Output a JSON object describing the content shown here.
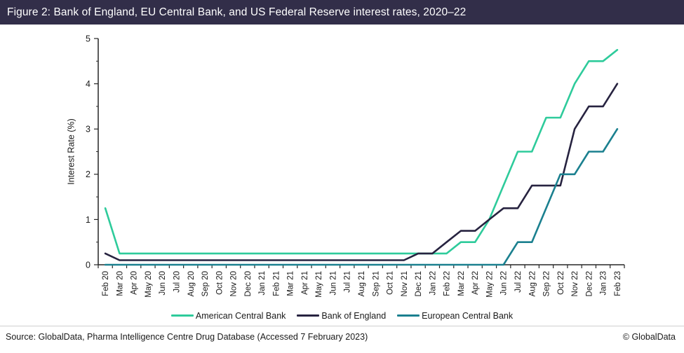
{
  "header": {
    "title": "Figure 2: Bank of England, EU Central Bank, and US Federal Reserve interest rates, 2020–22"
  },
  "colors": {
    "title_bar_bg": "#322e49",
    "title_text": "#ffffff",
    "axis": "#262626",
    "tick_label": "#1a1a1a",
    "american": "#2ecb9b",
    "boe": "#272340",
    "ecb": "#1b808f"
  },
  "chart_data": {
    "type": "line",
    "title": "",
    "xlabel": "",
    "ylabel": "Interest Rate (%)",
    "ylim": [
      0,
      5
    ],
    "y_major_step": 1,
    "y_minor_step": 0.5,
    "grid": false,
    "legend_position": "bottom-center",
    "categories": [
      "Feb 20",
      "Mar 20",
      "Apr 20",
      "May 20",
      "Jun 20",
      "Jul 20",
      "Aug 20",
      "Sep 20",
      "Oct 20",
      "Nov 20",
      "Dec 20",
      "Jan 21",
      "Feb 21",
      "Mar 21",
      "Apr 21",
      "May 21",
      "Jun 21",
      "Jul 21",
      "Aug 21",
      "Sep 21",
      "Oct 21",
      "Nov 21",
      "Dec 21",
      "Jan 22",
      "Feb 22",
      "Mar 22",
      "Apr 22",
      "May 22",
      "Jun 22",
      "Jul 22",
      "Aug 22",
      "Sep 22",
      "Oct 22",
      "Nov 22",
      "Dec 22",
      "Jan 23",
      "Feb 23"
    ],
    "series": [
      {
        "name": "American Central Bank",
        "color_key": "american",
        "values": [
          1.25,
          0.25,
          0.25,
          0.25,
          0.25,
          0.25,
          0.25,
          0.25,
          0.25,
          0.25,
          0.25,
          0.25,
          0.25,
          0.25,
          0.25,
          0.25,
          0.25,
          0.25,
          0.25,
          0.25,
          0.25,
          0.25,
          0.25,
          0.25,
          0.25,
          0.5,
          0.5,
          1.0,
          1.75,
          2.5,
          2.5,
          3.25,
          3.25,
          4.0,
          4.5,
          4.5,
          4.75
        ]
      },
      {
        "name": "Bank of England",
        "color_key": "boe",
        "values": [
          0.25,
          0.1,
          0.1,
          0.1,
          0.1,
          0.1,
          0.1,
          0.1,
          0.1,
          0.1,
          0.1,
          0.1,
          0.1,
          0.1,
          0.1,
          0.1,
          0.1,
          0.1,
          0.1,
          0.1,
          0.1,
          0.1,
          0.25,
          0.25,
          0.5,
          0.75,
          0.75,
          1.0,
          1.25,
          1.25,
          1.75,
          1.75,
          1.75,
          3.0,
          3.5,
          3.5,
          4.0
        ]
      },
      {
        "name": "European Central Bank",
        "color_key": "ecb",
        "values": [
          0,
          0,
          0,
          0,
          0,
          0,
          0,
          0,
          0,
          0,
          0,
          0,
          0,
          0,
          0,
          0,
          0,
          0,
          0,
          0,
          0,
          0,
          0,
          0,
          0,
          0,
          0,
          0,
          0,
          0.5,
          0.5,
          1.25,
          2.0,
          2.0,
          2.5,
          2.5,
          3.0
        ]
      }
    ]
  },
  "footer": {
    "source": "Source: GlobalData, Pharma Intelligence Centre Drug Database (Accessed 7 February 2023)",
    "copyright": "© GlobalData"
  }
}
